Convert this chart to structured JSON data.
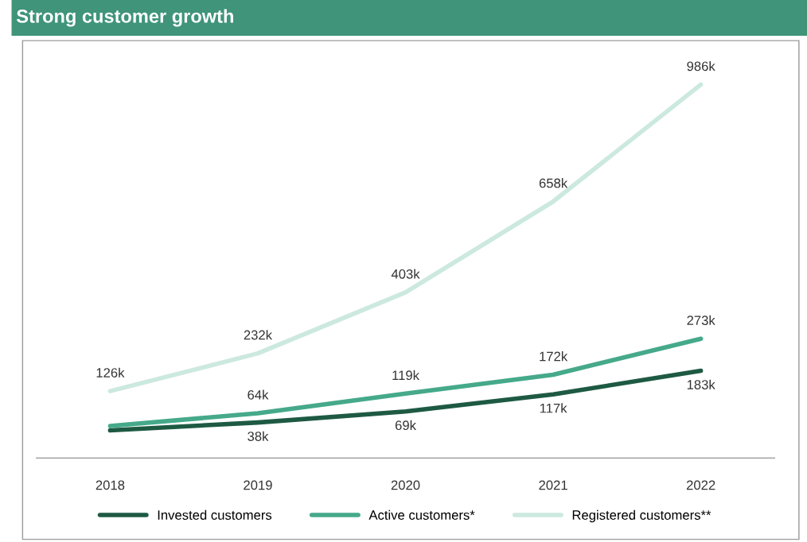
{
  "chart_data": {
    "type": "line",
    "title": "Strong customer growth",
    "categories": [
      "2018",
      "2019",
      "2020",
      "2021",
      "2022"
    ],
    "series": [
      {
        "name": "Invested customers",
        "color": "#1e5a43",
        "values": [
          16,
          38,
          69,
          117,
          183
        ],
        "value_labels": [
          null,
          "38k",
          "69k",
          "117k",
          "183k"
        ]
      },
      {
        "name": "Active customers*",
        "color": "#45a98a",
        "values": [
          28,
          64,
          119,
          172,
          273
        ],
        "value_labels": [
          null,
          "64k",
          "119k",
          "172k",
          "273k"
        ]
      },
      {
        "name": "Registered customers**",
        "color": "#cce9df",
        "values": [
          126,
          232,
          403,
          658,
          986
        ],
        "value_labels": [
          "126k",
          "232k",
          "403k",
          "658k",
          "986k"
        ]
      }
    ],
    "tick_labels": "x",
    "grid": false,
    "legend": "bottom",
    "marker": "none",
    "line_style": "solid"
  }
}
